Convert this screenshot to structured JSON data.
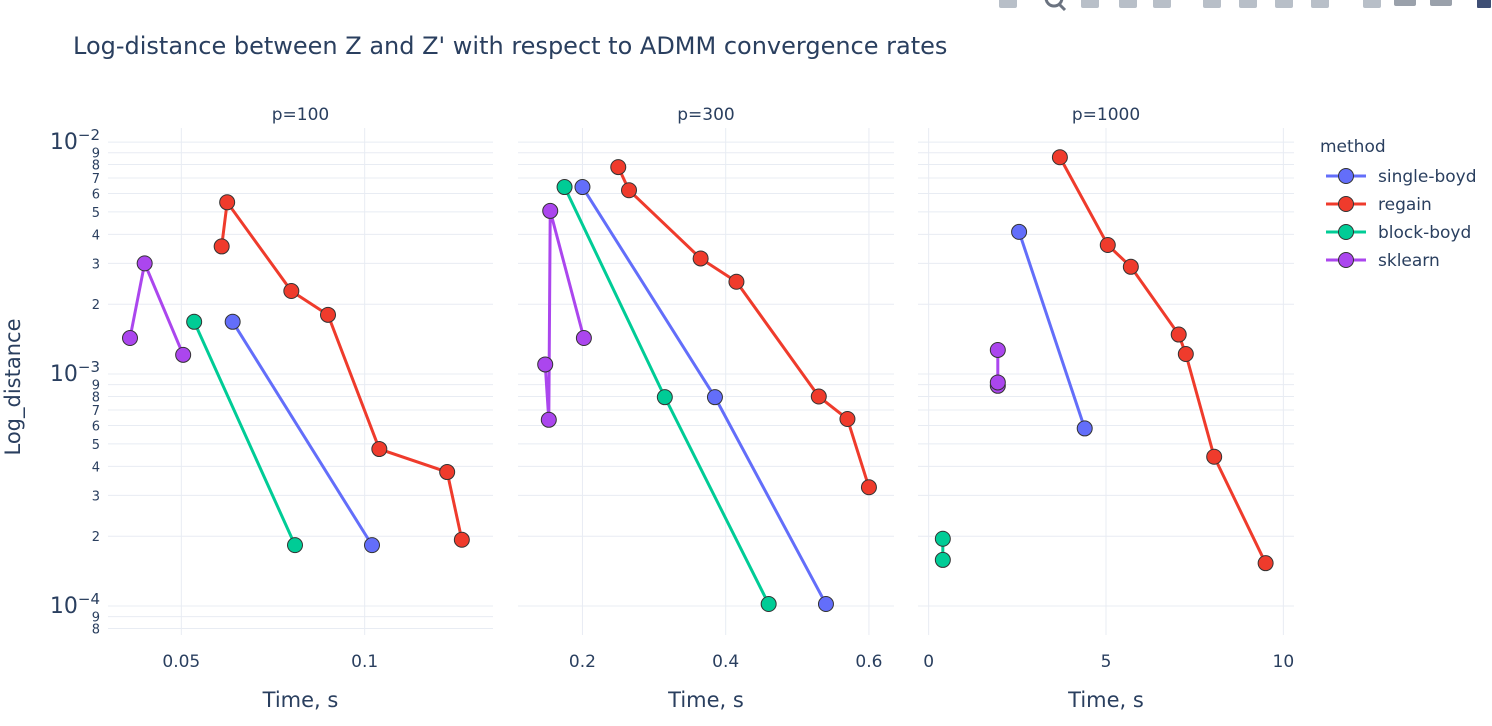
{
  "chart_data": {
    "type": "line",
    "title": "Log-distance between Z and Z' with respect to ADMM convergence rates",
    "ylabel": "Log_distance",
    "y_scale": "log",
    "ylim": [
      7.5e-05,
      0.0115
    ],
    "grid": true,
    "legend_title": "method",
    "legend_position": "right",
    "series_colors": {
      "single-boyd": "#636efa",
      "regain": "#ef3b2c",
      "block-boyd": "#00cc96",
      "sklearn": "#ab46ee"
    },
    "series_names": [
      "single-boyd",
      "regain",
      "block-boyd",
      "sklearn"
    ],
    "y_major_labels": [
      {
        "v": 0.01,
        "base": "10",
        "exp": "−2"
      },
      {
        "v": 0.001,
        "base": "10",
        "exp": "−3"
      },
      {
        "v": 0.0001,
        "base": "10",
        "exp": "−4"
      }
    ],
    "y_minor_labels": [
      "2",
      "3",
      "4",
      "5",
      "6",
      "7",
      "8",
      "9"
    ],
    "panels": [
      {
        "title": "p=100",
        "xlabel": "Time, s",
        "xlim": [
          0.03,
          0.135
        ],
        "xticks": [
          {
            "v": 0.05,
            "label": "0.05"
          },
          {
            "v": 0.1,
            "label": "0.1"
          }
        ],
        "series": [
          {
            "name": "single-boyd",
            "x": [
              0.064,
              0.102
            ],
            "y": [
              0.00168,
              0.000183
            ]
          },
          {
            "name": "regain",
            "x": [
              0.061,
              0.0625,
              0.08,
              0.09,
              0.104,
              0.1225,
              0.1265
            ],
            "y": [
              0.00355,
              0.0055,
              0.00228,
              0.0018,
              0.000475,
              0.000378,
              0.000193
            ]
          },
          {
            "name": "block-boyd",
            "x": [
              0.0535,
              0.081
            ],
            "y": [
              0.00168,
              0.000183
            ]
          },
          {
            "name": "sklearn",
            "x": [
              0.036,
              0.04,
              0.0505
            ],
            "y": [
              0.00143,
              0.003,
              0.00121
            ]
          }
        ]
      },
      {
        "title": "p=300",
        "xlabel": "Time, s",
        "xlim": [
          0.11,
          0.635
        ],
        "xticks": [
          {
            "v": 0.2,
            "label": "0.2"
          },
          {
            "v": 0.4,
            "label": "0.4"
          },
          {
            "v": 0.6,
            "label": "0.6"
          }
        ],
        "series": [
          {
            "name": "single-boyd",
            "x": [
              0.2,
              0.385,
              0.54
            ],
            "y": [
              0.0064,
              0.000795,
              0.000102
            ]
          },
          {
            "name": "regain",
            "x": [
              0.25,
              0.265,
              0.365,
              0.415,
              0.53,
              0.57,
              0.6
            ],
            "y": [
              0.0078,
              0.0062,
              0.00315,
              0.0025,
              0.0008,
              0.00064,
              0.000325
            ]
          },
          {
            "name": "block-boyd",
            "x": [
              0.175,
              0.315,
              0.46
            ],
            "y": [
              0.0064,
              0.000795,
              0.000102
            ]
          },
          {
            "name": "sklearn",
            "x": [
              0.148,
              0.153,
              0.155,
              0.202
            ],
            "y": [
              0.0011,
              0.000635,
              0.00505,
              0.00143
            ]
          }
        ]
      },
      {
        "title": "p=1000",
        "xlabel": "Time, s",
        "xlim": [
          -0.3,
          10.3
        ],
        "xticks": [
          {
            "v": 0,
            "label": "0"
          },
          {
            "v": 5,
            "label": "5"
          },
          {
            "v": 10,
            "label": "10"
          }
        ],
        "series": [
          {
            "name": "single-boyd",
            "x": [
              2.55,
              4.4
            ],
            "y": [
              0.0041,
              0.000583
            ]
          },
          {
            "name": "regain",
            "x": [
              3.7,
              5.05,
              5.7,
              7.05,
              7.25,
              8.05,
              9.5
            ],
            "y": [
              0.0086,
              0.0036,
              0.0029,
              0.00148,
              0.00122,
              0.00044,
              0.000153
            ]
          },
          {
            "name": "block-boyd",
            "x": [
              0.4,
              0.4
            ],
            "y": [
              0.000195,
              0.000158
            ]
          },
          {
            "name": "sklearn",
            "x": [
              1.95,
              1.95,
              1.95
            ],
            "y": [
              0.00089,
              0.00127,
              0.00092
            ]
          }
        ]
      }
    ]
  },
  "modebar_icons": [
    "camera-icon",
    "zoom-icon",
    "pan-icon",
    "box-select-icon",
    "lasso-icon",
    "zoom-in-icon",
    "zoom-out-icon",
    "autoscale-icon",
    "reset-axes-icon",
    "spike-lines-icon",
    "hover-closest-icon",
    "hover-compare-icon",
    "plotly-logo-icon"
  ]
}
